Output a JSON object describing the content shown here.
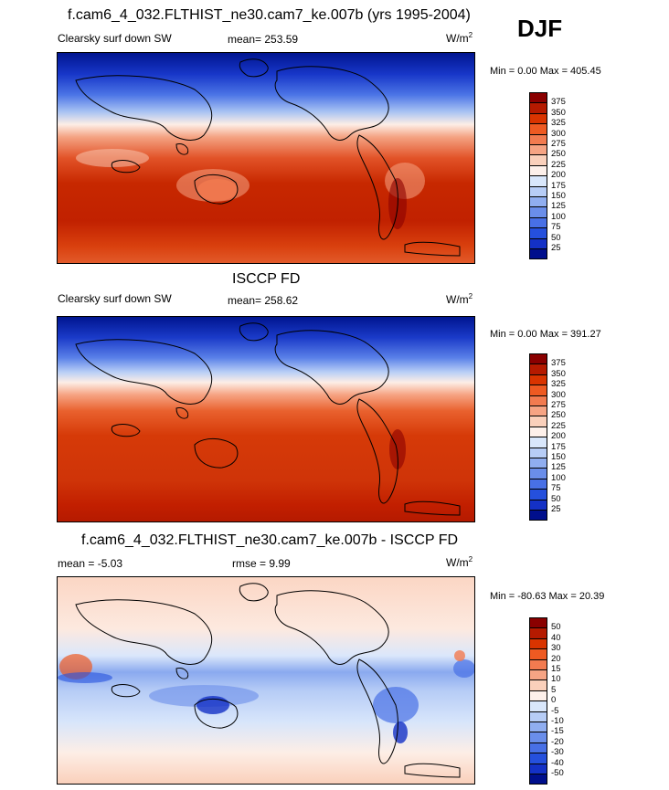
{
  "season": "DJF",
  "panels": [
    {
      "title": "f.cam6_4_032.FLTHIST_ne30.cam7_ke.007b (yrs 1995-2004)",
      "left_label": "Clearsky surf down SW",
      "stat_label": "mean= 253.59",
      "units_base": "W/m",
      "units_sup": "2",
      "min_max": "Min =   0.00 Max = 405.45",
      "colorbar": {
        "ticks": [
          "375",
          "350",
          "325",
          "300",
          "275",
          "250",
          "225",
          "200",
          "175",
          "150",
          "125",
          "100",
          "75",
          "50",
          "25"
        ],
        "colors": [
          "#8a0000",
          "#b51a00",
          "#d93400",
          "#ee5a22",
          "#f27b50",
          "#f6a484",
          "#fad0bb",
          "#fdf0ea",
          "#d9e7fb",
          "#b7cdf6",
          "#90aef0",
          "#6a8eea",
          "#4870e6",
          "#2550dd",
          "#1431c6",
          "#000f8c"
        ]
      }
    },
    {
      "title": "ISCCP FD",
      "left_label": "Clearsky surf down SW",
      "stat_label": "mean= 258.62",
      "units_base": "W/m",
      "units_sup": "2",
      "min_max": "Min =   0.00 Max = 391.27",
      "colorbar": {
        "ticks": [
          "375",
          "350",
          "325",
          "300",
          "275",
          "250",
          "225",
          "200",
          "175",
          "150",
          "125",
          "100",
          "75",
          "50",
          "25"
        ],
        "colors": [
          "#8a0000",
          "#b51a00",
          "#d93400",
          "#ee5a22",
          "#f27b50",
          "#f6a484",
          "#fad0bb",
          "#fdf0ea",
          "#d9e7fb",
          "#b7cdf6",
          "#90aef0",
          "#6a8eea",
          "#4870e6",
          "#2550dd",
          "#1431c6",
          "#000f8c"
        ]
      }
    },
    {
      "title": "f.cam6_4_032.FLTHIST_ne30.cam7_ke.007b - ISCCP FD",
      "left_label": "mean =  -5.03",
      "stat_label": "rmse =   9.99",
      "units_base": "W/m",
      "units_sup": "2",
      "min_max": "Min = -80.63 Max =  20.39",
      "colorbar": {
        "ticks": [
          "50",
          "40",
          "30",
          "20",
          "15",
          "10",
          "5",
          "0",
          "-5",
          "-10",
          "-15",
          "-20",
          "-30",
          "-40",
          "-50"
        ],
        "colors": [
          "#8a0000",
          "#b51a00",
          "#d93400",
          "#ee5a22",
          "#f27b50",
          "#f6a484",
          "#fad0bb",
          "#fdf0ea",
          "#d9e7fb",
          "#b7cdf6",
          "#90aef0",
          "#6a8eea",
          "#4870e6",
          "#2550dd",
          "#1431c6",
          "#000f8c"
        ]
      }
    }
  ]
}
